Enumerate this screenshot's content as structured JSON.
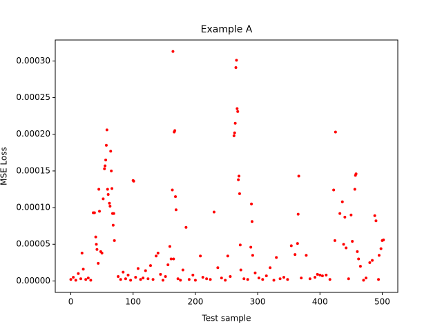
{
  "chart_data": {
    "type": "scatter",
    "title": "Example A",
    "x_label": "Test sample",
    "y_label": "MSE Loss",
    "color": "#ff0000",
    "xlim": [
      -25,
      525
    ],
    "ylim": [
      -1.56e-05,
      0.0003286
    ],
    "xticks": [
      0,
      100,
      200,
      300,
      400,
      500
    ],
    "yticks": [
      {
        "value": 0,
        "label": "0.00000"
      },
      {
        "value": 5e-05,
        "label": "0.00005"
      },
      {
        "value": 0.0001,
        "label": "0.00010"
      },
      {
        "value": 0.00015,
        "label": "0.00015"
      },
      {
        "value": 0.0002,
        "label": "0.00020"
      },
      {
        "value": 0.00025,
        "label": "0.00025"
      },
      {
        "value": 0.0003,
        "label": "0.00030"
      }
    ],
    "x": [
      36,
      38,
      40,
      41,
      42,
      44,
      45,
      46,
      48,
      50,
      52,
      54,
      55,
      56,
      57,
      58,
      59,
      60,
      62,
      63,
      64,
      65,
      66,
      67,
      68,
      69,
      70,
      100,
      101,
      159,
      161,
      163,
      164,
      165,
      166,
      167,
      168,
      169,
      185,
      230,
      252,
      262,
      263,
      264,
      265,
      266,
      267,
      268,
      269,
      270,
      271,
      272,
      273,
      289,
      290,
      291,
      292,
      330,
      360,
      364,
      365,
      366,
      378,
      422,
      424,
      425,
      432,
      436,
      438,
      440,
      442,
      450,
      452,
      456,
      457,
      458,
      460,
      462,
      465,
      488,
      490,
      495,
      498,
      500,
      502,
      18,
      137,
      140,
      180,
      208,
      236,
      320,
      354,
      480,
      484,
      0,
      4,
      8,
      12,
      16,
      20,
      24,
      28,
      32,
      76,
      80,
      84,
      88,
      92,
      96,
      104,
      108,
      112,
      116,
      120,
      124,
      128,
      132,
      144,
      148,
      152,
      156,
      172,
      176,
      190,
      196,
      200,
      212,
      218,
      224,
      242,
      248,
      256,
      278,
      284,
      296,
      302,
      308,
      314,
      326,
      336,
      342,
      348,
      370,
      384,
      392,
      396,
      400,
      404,
      410,
      416,
      446,
      470,
      474,
      494
    ],
    "y": [
      9.3e-05,
      9.3e-05,
      6e-05,
      5e-05,
      4.3e-05,
      2.4e-05,
      0.000125,
      9.5e-05,
      4e-05,
      3.8e-05,
      0.000112,
      0.000153,
      0.000157,
      0.000165,
      0.000185,
      0.000206,
      0.000125,
      0.000118,
      0.000106,
      0.000102,
      0.000177,
      0.00015,
      0.000126,
      9.2e-05,
      7.6e-05,
      9.2e-05,
      5.5e-05,
      0.000137,
      0.000136,
      4.7e-05,
      3e-05,
      0.000124,
      0.000313,
      3e-05,
      0.000203,
      0.000205,
      0.000115,
      9.7e-05,
      7.3e-05,
      9.4e-05,
      3.4e-05,
      0.000198,
      0.000202,
      0.000215,
      0.000291,
      0.000301,
      0.000235,
      0.000231,
      0.000138,
      0.000143,
      0.000119,
      4.9e-05,
      1.5e-05,
      4.6e-05,
      0.000105,
      8.1e-05,
      3.5e-05,
      3.2e-05,
      3.6e-05,
      5.1e-05,
      9.1e-05,
      0.000143,
      3.5e-05,
      0.000124,
      5.5e-05,
      0.000203,
      9.2e-05,
      0.000108,
      5e-05,
      8.7e-05,
      4.5e-05,
      9e-05,
      5.4e-05,
      0.000125,
      0.000144,
      0.000146,
      4e-05,
      3e-05,
      2e-05,
      8.9e-05,
      8.2e-05,
      3.5e-05,
      4.4e-05,
      5.5e-05,
      5.6e-05,
      3.8e-05,
      3.4e-05,
      3.8e-05,
      1.5e-05,
      3.4e-05,
      1.8e-05,
      1.8e-05,
      4.8e-05,
      2.5e-05,
      2.8e-05,
      2e-06,
      5e-06,
      1e-06,
      1e-05,
      3e-06,
      1.6e-05,
      2e-06,
      4e-06,
      1e-06,
      6e-06,
      2e-06,
      1.2e-05,
      3e-06,
      8e-06,
      1e-06,
      5e-06,
      1.7e-05,
      2e-06,
      4e-06,
      1.4e-05,
      3e-06,
      2.1e-05,
      2e-06,
      9e-06,
      1e-06,
      6e-06,
      2.2e-05,
      3e-06,
      1e-06,
      2e-06,
      8e-06,
      1e-06,
      5e-06,
      3e-06,
      2e-06,
      4e-06,
      1e-06,
      6e-06,
      3e-06,
      2e-06,
      1.1e-05,
      4e-06,
      2e-06,
      7e-06,
      1e-06,
      3e-06,
      5e-06,
      2e-06,
      4e-06,
      3e-06,
      5e-06,
      9e-06,
      8e-06,
      7e-06,
      8e-06,
      2e-06,
      3e-06,
      1e-06,
      4e-06,
      2e-06
    ]
  }
}
